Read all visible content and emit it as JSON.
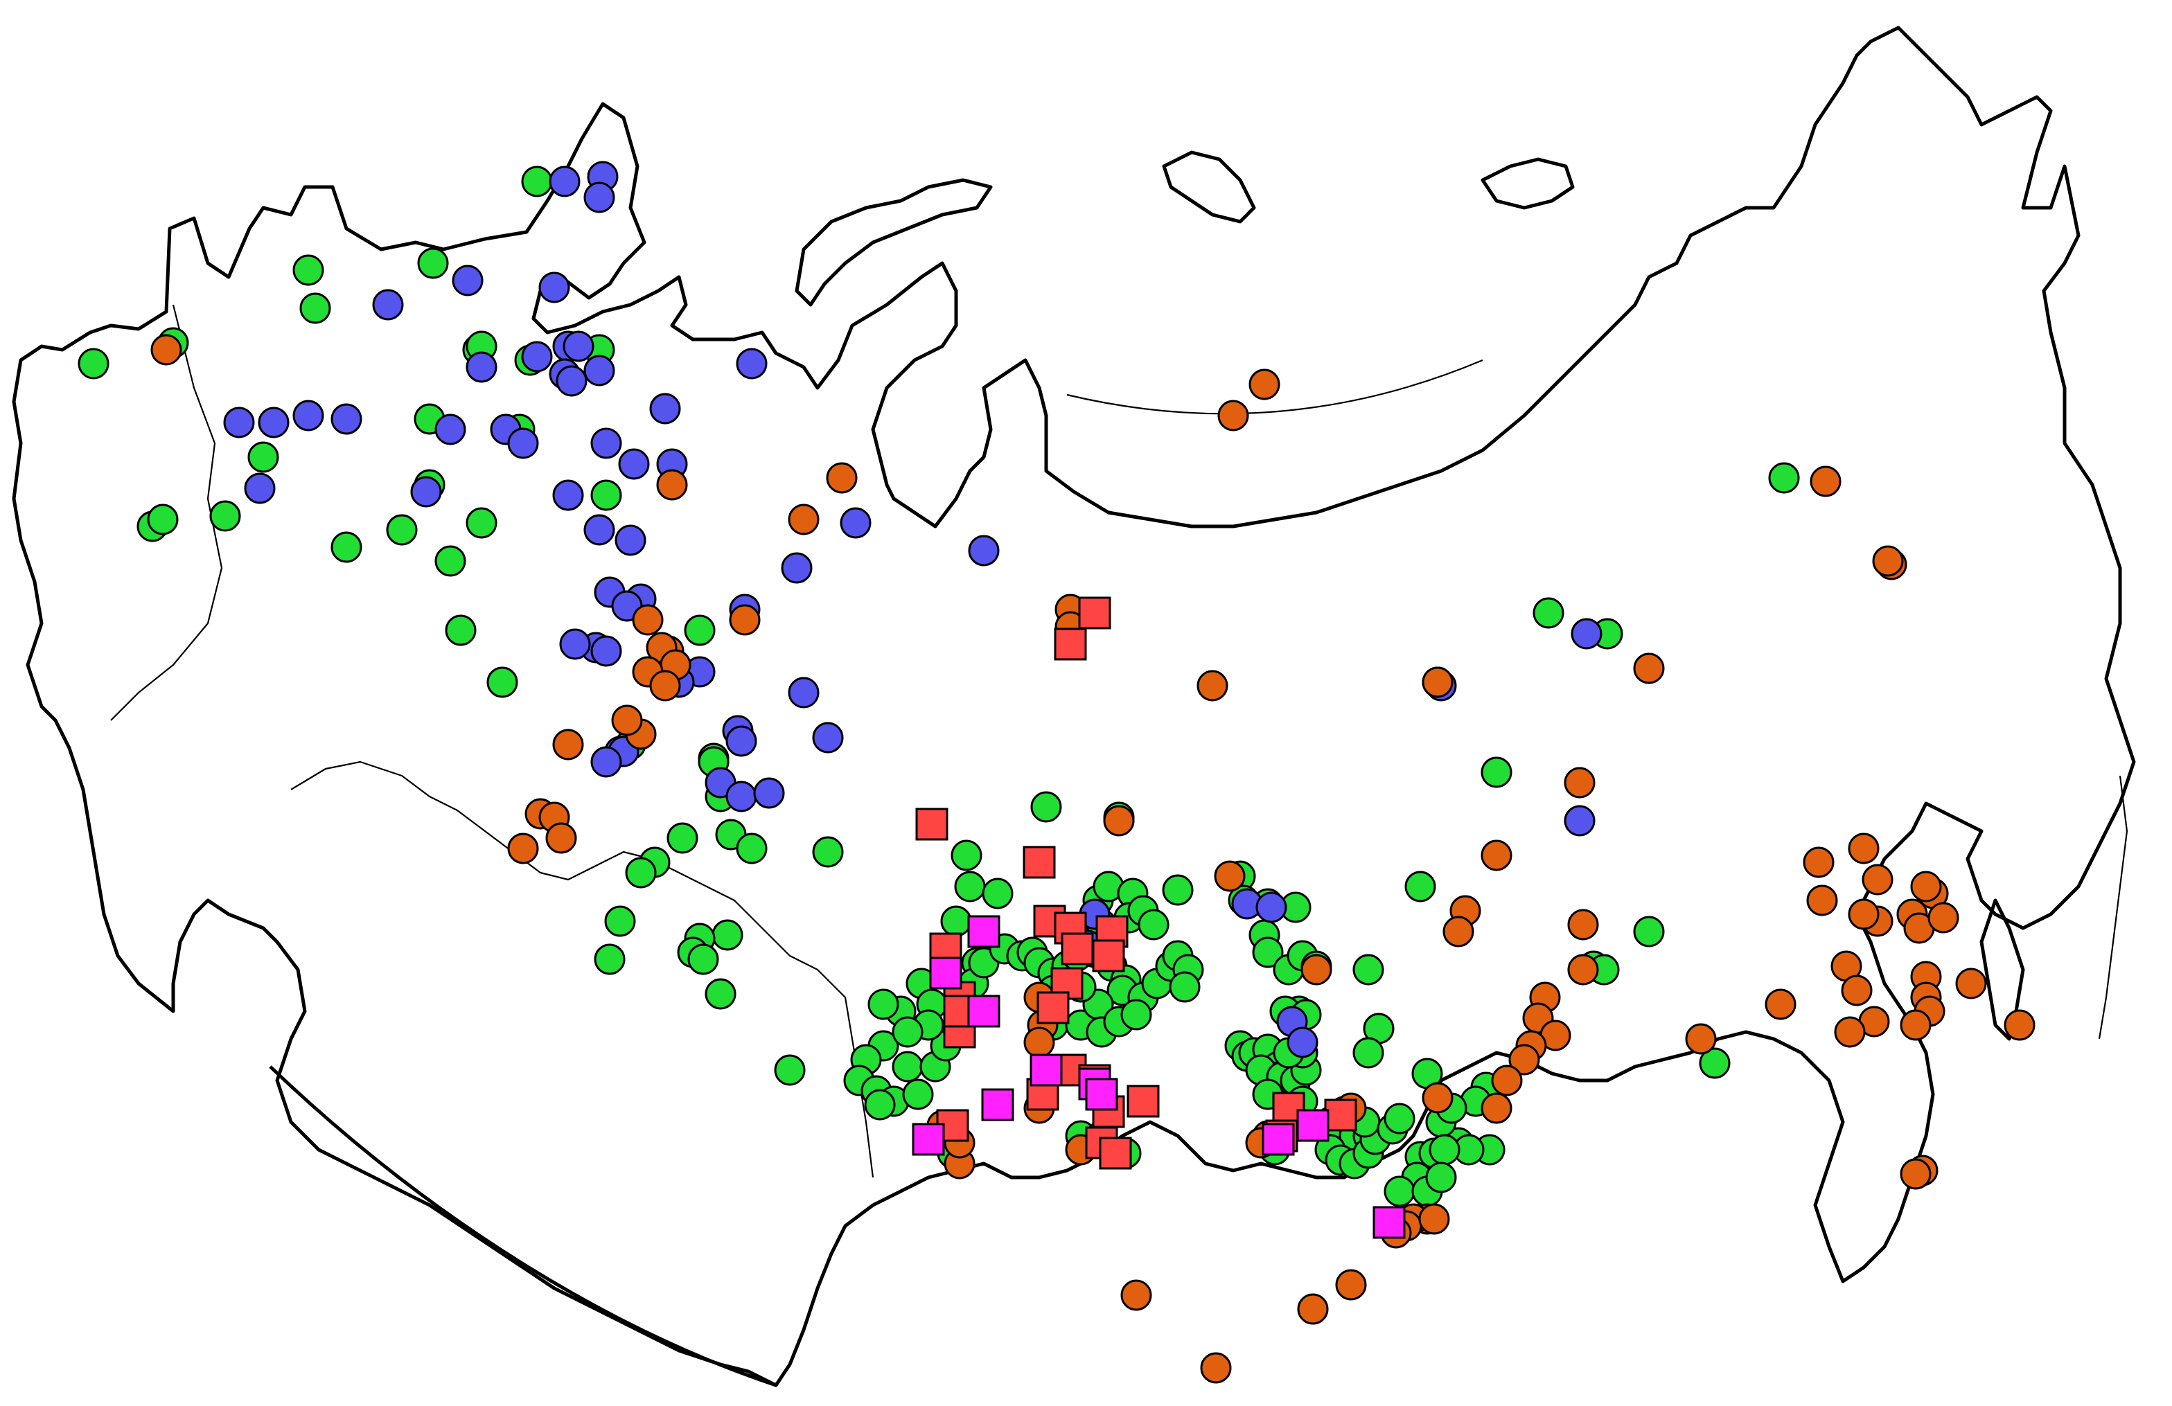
{
  "map": {
    "colors": {
      "circle_green": "#22DD33",
      "circle_blue": "#5555EE",
      "circle_orange": "#E06010",
      "square_red": "#FF4444",
      "square_magenta": "#FF22FF",
      "circle_stroke_alt": "#7722CC",
      "outline": "#000000",
      "background": "#FFFFFF"
    },
    "marker_kinds": [
      "circle_green",
      "circle_blue",
      "circle_orange",
      "square_red",
      "square_magenta"
    ]
  }
}
